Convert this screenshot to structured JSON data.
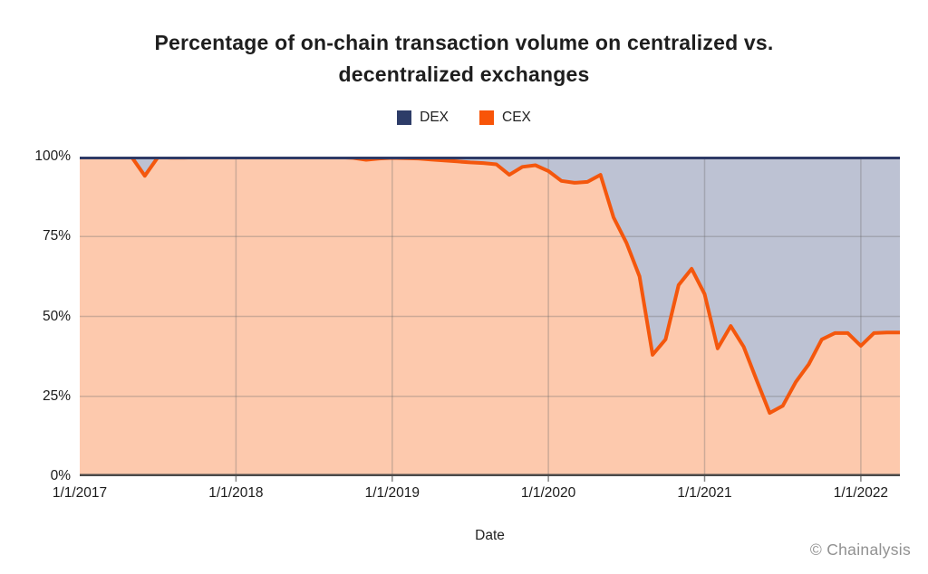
{
  "title": {
    "line1": "Percentage of on-chain transaction volume on centralized vs.",
    "line2": "decentralized exchanges"
  },
  "legend": [
    {
      "label": "DEX",
      "color": "#2d3c68"
    },
    {
      "label": "CEX",
      "color": "#f85408"
    }
  ],
  "colors": {
    "dex_fill": "#bdc2d3",
    "cex_fill": "#fdc9ad",
    "cex_line": "#f4570d",
    "dex_line": "#2e3a66",
    "grid": "rgba(105,105,105,0.32)",
    "tick": "#888888",
    "axis": "#4a4a4a"
  },
  "footer": {
    "attribution": "© Chainalysis"
  },
  "chart_data": {
    "type": "area",
    "title": "Percentage of on-chain transaction volume on centralized vs. decentralized exchanges",
    "xlabel": "Date",
    "ylabel": "",
    "ylim": [
      0,
      100
    ],
    "stacked_to_100": true,
    "grid": true,
    "legend_position": "top",
    "y_ticks": [
      "100%",
      "75%",
      "50%",
      "25%",
      "0%"
    ],
    "y_tick_values": [
      100,
      75,
      50,
      25,
      0
    ],
    "x_ticks": [
      "1/1/2017",
      "1/1/2018",
      "1/1/2019",
      "1/1/2020",
      "1/1/2021",
      "1/1/2022"
    ],
    "x": [
      "1/2017",
      "2/2017",
      "3/2017",
      "4/2017",
      "5/2017",
      "6/2017",
      "7/2017",
      "8/2017",
      "9/2017",
      "10/2017",
      "11/2017",
      "12/2017",
      "1/2018",
      "2/2018",
      "3/2018",
      "4/2018",
      "5/2018",
      "6/2018",
      "7/2018",
      "8/2018",
      "9/2018",
      "10/2018",
      "11/2018",
      "12/2018",
      "1/2019",
      "2/2019",
      "3/2019",
      "4/2019",
      "5/2019",
      "6/2019",
      "7/2019",
      "8/2019",
      "9/2019",
      "10/2019",
      "11/2019",
      "12/2019",
      "1/2020",
      "2/2020",
      "3/2020",
      "4/2020",
      "5/2020",
      "6/2020",
      "7/2020",
      "8/2020",
      "9/2020",
      "10/2020",
      "11/2020",
      "12/2020",
      "1/2021",
      "2/2021",
      "3/2021",
      "4/2021",
      "5/2021",
      "6/2021",
      "7/2021",
      "8/2021",
      "9/2021",
      "10/2021",
      "11/2021",
      "12/2021",
      "1/2022",
      "2/2022",
      "3/2022",
      "4/2022"
    ],
    "series": [
      {
        "name": "DEX",
        "values": [
          0.2,
          0.2,
          0.2,
          0.2,
          0.2,
          6.0,
          0.2,
          0.3,
          0.3,
          0.2,
          0.2,
          0.2,
          0.2,
          0.2,
          0.2,
          0.2,
          0.2,
          0.2,
          0.2,
          0.2,
          0.2,
          0.4,
          1.0,
          0.6,
          0.4,
          0.5,
          0.6,
          0.9,
          1.2,
          1.5,
          1.8,
          2.0,
          2.4,
          5.7,
          3.2,
          2.7,
          4.5,
          7.6,
          8.2,
          7.9,
          5.7,
          19.0,
          27.0,
          37.5,
          62.0,
          57.2,
          40.2,
          35.1,
          43.0,
          60.0,
          53.0,
          59.5,
          70.0,
          80.2,
          78.0,
          70.5,
          65.0,
          57.2,
          55.2,
          55.2,
          59.2,
          55.2,
          55.0,
          55.0
        ]
      },
      {
        "name": "CEX",
        "values": [
          99.8,
          99.8,
          99.8,
          99.8,
          99.8,
          94.0,
          99.8,
          99.7,
          99.7,
          99.8,
          99.8,
          99.8,
          99.8,
          99.8,
          99.8,
          99.8,
          99.8,
          99.8,
          99.8,
          99.8,
          99.8,
          99.6,
          99.0,
          99.4,
          99.6,
          99.5,
          99.4,
          99.1,
          98.8,
          98.5,
          98.2,
          98.0,
          97.6,
          94.3,
          96.8,
          97.3,
          95.5,
          92.4,
          91.8,
          92.1,
          94.3,
          81.0,
          73.0,
          62.5,
          38.0,
          42.8,
          59.8,
          64.9,
          57.0,
          40.0,
          47.0,
          40.5,
          30.0,
          19.8,
          22.0,
          29.5,
          35.0,
          42.8,
          44.8,
          44.8,
          40.8,
          44.8,
          45.0,
          45.0
        ]
      }
    ]
  }
}
